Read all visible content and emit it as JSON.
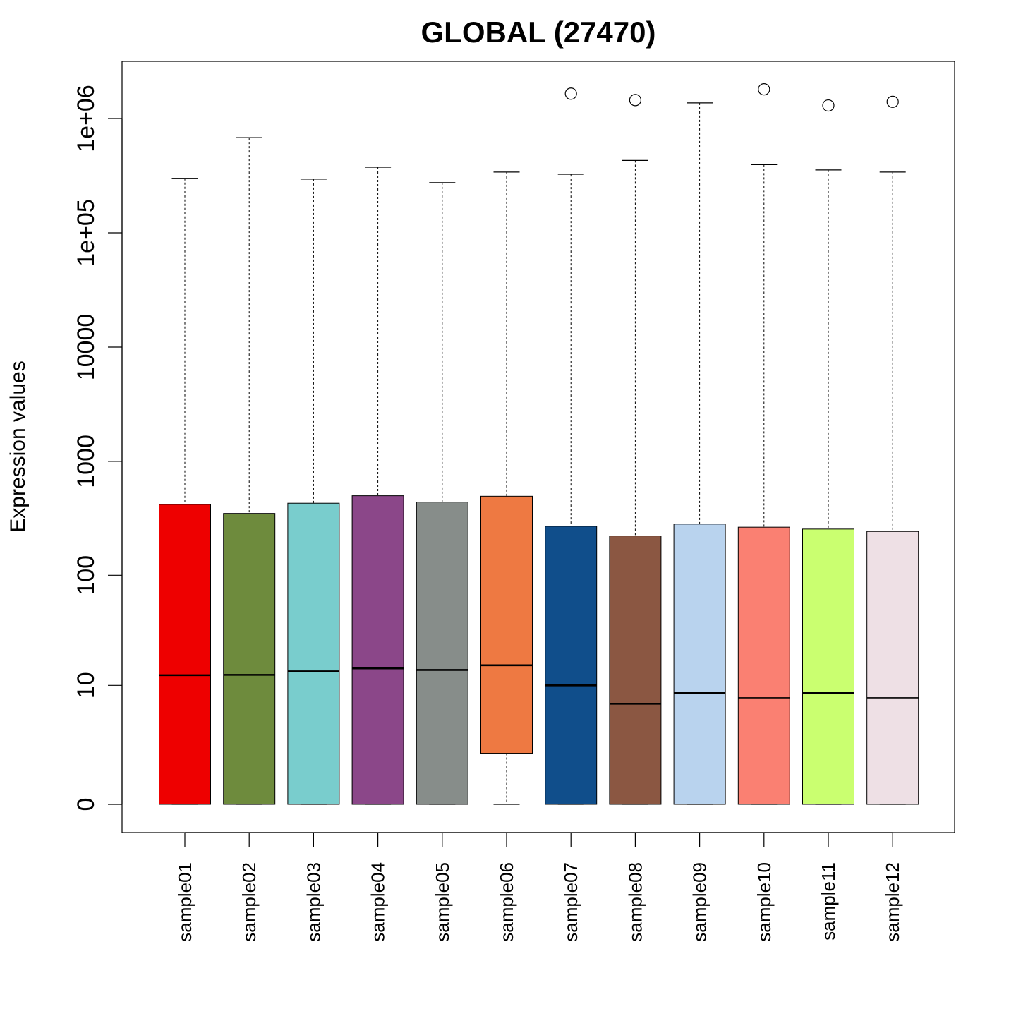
{
  "chart_data": {
    "type": "boxplot",
    "title": "GLOBAL (27470)",
    "xlabel": "",
    "ylabel": "Expression values",
    "yscale": "log(1+x)",
    "ylim": [
      0,
      3000000
    ],
    "y_ticks": [
      {
        "value": 0,
        "label": "0"
      },
      {
        "value": 10,
        "label": "10"
      },
      {
        "value": 100,
        "label": "100"
      },
      {
        "value": 1000,
        "label": "1000"
      },
      {
        "value": 10000,
        "label": "10000"
      },
      {
        "value": 100000,
        "label": "1e+05"
      },
      {
        "value": 1000000,
        "label": "1e+06"
      }
    ],
    "grid": false,
    "legend": "none",
    "categories": [
      "sample01",
      "sample02",
      "sample03",
      "sample04",
      "sample05",
      "sample06",
      "sample07",
      "sample08",
      "sample09",
      "sample10",
      "sample11",
      "sample12"
    ],
    "series": [
      {
        "category": "sample01",
        "color": "#EE0000",
        "whisker_low": 0,
        "q1": 0,
        "median": 12.5,
        "q3": 420,
        "whisker_high": 300000,
        "outliers": []
      },
      {
        "category": "sample02",
        "color": "#6E8B3D",
        "whisker_low": 0,
        "q1": 0,
        "median": 12.6,
        "q3": 350,
        "whisker_high": 680000,
        "outliers": []
      },
      {
        "category": "sample03",
        "color": "#79CDCD",
        "whisker_low": 0,
        "q1": 0,
        "median": 13.6,
        "q3": 430,
        "whisker_high": 295000,
        "outliers": []
      },
      {
        "category": "sample04",
        "color": "#8B4789",
        "whisker_low": 0,
        "q1": 0,
        "median": 14.5,
        "q3": 500,
        "whisker_high": 375000,
        "outliers": []
      },
      {
        "category": "sample05",
        "color": "#878D8A",
        "whisker_low": 0,
        "q1": 0,
        "median": 14.0,
        "q3": 440,
        "whisker_high": 275000,
        "outliers": []
      },
      {
        "category": "sample06",
        "color": "#EE7942",
        "whisker_low": 0,
        "q1": 1.8,
        "median": 15.5,
        "q3": 495,
        "whisker_high": 340000,
        "outliers": []
      },
      {
        "category": "sample07",
        "color": "#104E8B",
        "whisker_low": 0,
        "q1": 0,
        "median": 10.0,
        "q3": 270,
        "whisker_high": 325000,
        "outliers": [
          1650000
        ]
      },
      {
        "category": "sample08",
        "color": "#8B5742",
        "whisker_low": 0,
        "q1": 0,
        "median": 6.6,
        "q3": 222,
        "whisker_high": 430000,
        "outliers": [
          1450000
        ]
      },
      {
        "category": "sample09",
        "color": "#B9D3EE",
        "whisker_low": 0,
        "q1": 0,
        "median": 8.4,
        "q3": 282,
        "whisker_high": 1370000,
        "outliers": []
      },
      {
        "category": "sample10",
        "color": "#FA8072",
        "whisker_low": 0,
        "q1": 0,
        "median": 7.5,
        "q3": 265,
        "whisker_high": 395000,
        "outliers": [
          1800000
        ]
      },
      {
        "category": "sample11",
        "color": "#CAFF70",
        "whisker_low": 0,
        "q1": 0,
        "median": 8.4,
        "q3": 255,
        "whisker_high": 355000,
        "outliers": [
          1300000
        ]
      },
      {
        "category": "sample12",
        "color": "#EEE0E5",
        "whisker_low": 0,
        "q1": 0,
        "median": 7.5,
        "q3": 243,
        "whisker_high": 340000,
        "outliers": [
          1400000
        ]
      }
    ]
  }
}
